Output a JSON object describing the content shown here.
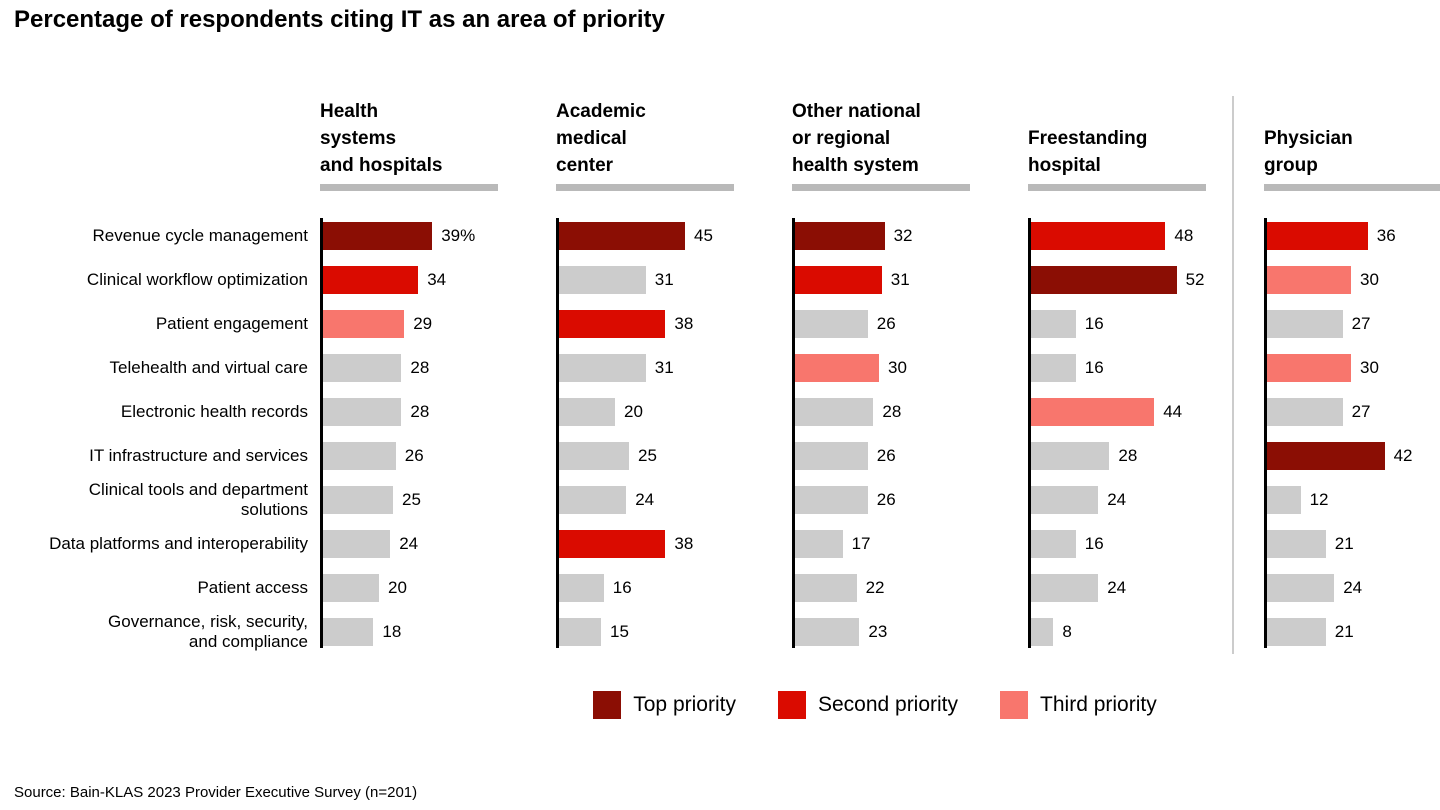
{
  "title": "Percentage of respondents citing IT as an area of priority",
  "source": "Source: Bain-KLAS 2023 Provider Executive Survey (n=201)",
  "colors": {
    "top": "#8b0e04",
    "second": "#da0b00",
    "third": "#f8766d",
    "bar_default": "#cccccc",
    "axis": "#000000",
    "header_underline": "#b9b9b9",
    "divider": "#cccccc"
  },
  "legend": [
    {
      "key": "top",
      "label": "Top priority"
    },
    {
      "key": "second",
      "label": "Second priority"
    },
    {
      "key": "third",
      "label": "Third priority"
    }
  ],
  "chart_data": {
    "type": "bar",
    "orientation": "horizontal",
    "title": "Percentage of respondents citing IT as an area of priority",
    "first_bar_suffix": "%",
    "xlim": [
      0,
      60
    ],
    "grid": false,
    "legend_position": "bottom",
    "categories": [
      "Revenue cycle management",
      "Clinical workflow optimization",
      "Patient engagement",
      "Telehealth and virtual care",
      "Electronic health records",
      "IT infrastructure and services",
      "Clinical tools and department\nsolutions",
      "Data platforms and interoperability",
      "Patient access",
      "Governance, risk, security,\nand compliance"
    ],
    "groups": [
      {
        "label": "Health\nsystems\nand hospitals",
        "values": [
          39,
          34,
          29,
          28,
          28,
          26,
          25,
          24,
          20,
          18
        ],
        "priorities": [
          "top",
          "second",
          "third",
          null,
          null,
          null,
          null,
          null,
          null,
          null
        ]
      },
      {
        "label": "Academic\nmedical\ncenter",
        "values": [
          45,
          31,
          38,
          31,
          20,
          25,
          24,
          38,
          16,
          15
        ],
        "priorities": [
          "top",
          null,
          "second",
          null,
          null,
          null,
          null,
          "second",
          null,
          null
        ]
      },
      {
        "label": "Other national\nor regional\nhealth system",
        "values": [
          32,
          31,
          26,
          30,
          28,
          26,
          26,
          17,
          22,
          23
        ],
        "priorities": [
          "top",
          "second",
          null,
          "third",
          null,
          null,
          null,
          null,
          null,
          null
        ]
      },
      {
        "label": "Freestanding\nhospital",
        "values": [
          48,
          52,
          16,
          16,
          44,
          28,
          24,
          16,
          24,
          8
        ],
        "priorities": [
          "second",
          "top",
          null,
          null,
          "third",
          null,
          null,
          null,
          null,
          null
        ]
      },
      {
        "label": "Physician\ngroup",
        "values": [
          36,
          30,
          27,
          30,
          27,
          42,
          12,
          21,
          24,
          21
        ],
        "priorities": [
          "second",
          "third",
          null,
          "third",
          null,
          "top",
          null,
          null,
          null,
          null
        ]
      }
    ]
  }
}
